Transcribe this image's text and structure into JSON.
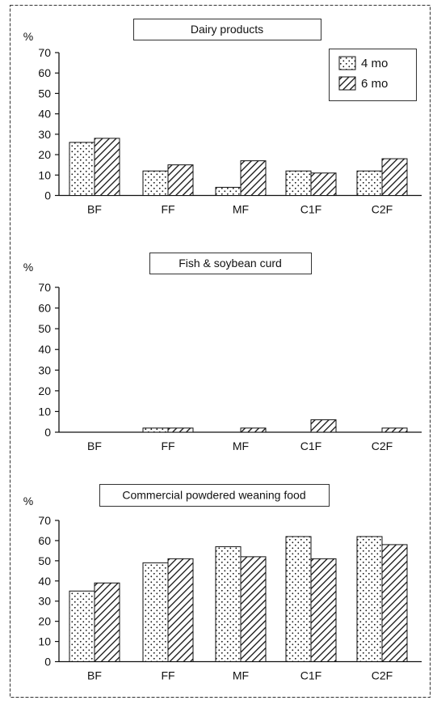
{
  "chart_data": [
    {
      "type": "bar",
      "title": "Dairy products",
      "ylabel": "%",
      "ylim": [
        0,
        70
      ],
      "yticks": [
        "0",
        "10",
        "20",
        "30",
        "40",
        "50",
        "60",
        "70"
      ],
      "categories": [
        "BF",
        "FF",
        "MF",
        "C1F",
        "C2F"
      ],
      "legend": {
        "placement": "top-right"
      },
      "series": [
        {
          "name": "4 mo",
          "pattern": "dots",
          "values": [
            26,
            12,
            4,
            12,
            12
          ]
        },
        {
          "name": "6 mo",
          "pattern": "hatch",
          "values": [
            28,
            15,
            17,
            11,
            18
          ]
        }
      ]
    },
    {
      "type": "bar",
      "title": "Fish & soybean curd",
      "ylabel": "%",
      "ylim": [
        0,
        70
      ],
      "yticks": [
        "0",
        "10",
        "20",
        "30",
        "40",
        "50",
        "60",
        "70"
      ],
      "categories": [
        "BF",
        "FF",
        "MF",
        "C1F",
        "C2F"
      ],
      "series": [
        {
          "pattern": "dots",
          "values": [
            0,
            2,
            0,
            0,
            0
          ]
        },
        {
          "pattern": "hatch",
          "values": [
            0,
            2,
            2,
            6,
            2
          ]
        }
      ]
    },
    {
      "type": "bar",
      "title": "Commercial powdered weaning food",
      "ylabel": "%",
      "ylim": [
        0,
        70
      ],
      "yticks": [
        "0",
        "10",
        "20",
        "30",
        "40",
        "50",
        "60",
        "70"
      ],
      "categories": [
        "BF",
        "FF",
        "MF",
        "C1F",
        "C2F"
      ],
      "series": [
        {
          "pattern": "dots",
          "values": [
            35,
            49,
            57,
            62,
            62
          ]
        },
        {
          "pattern": "hatch",
          "values": [
            39,
            51,
            52,
            51,
            58
          ]
        }
      ]
    }
  ]
}
